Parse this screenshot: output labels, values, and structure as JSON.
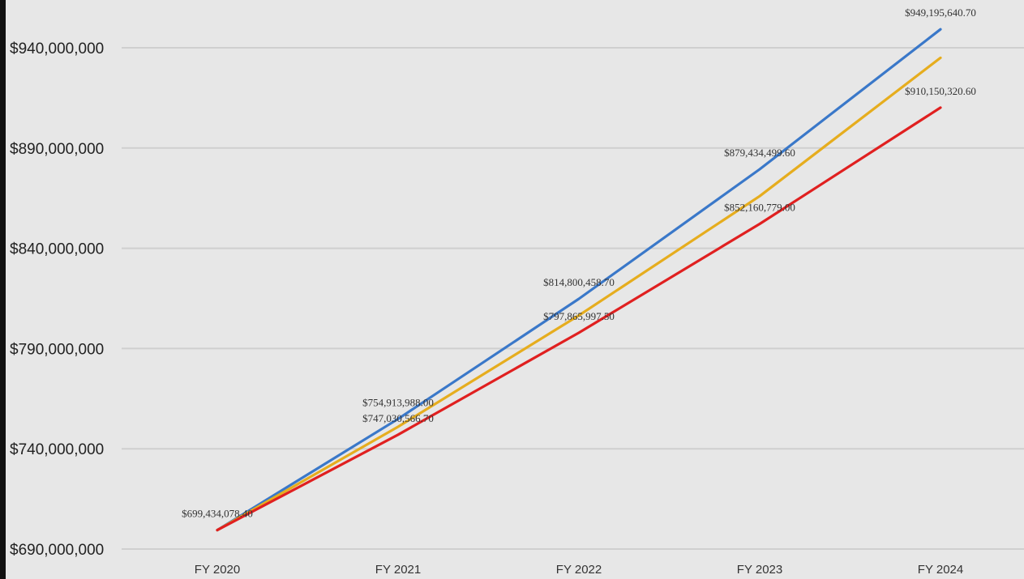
{
  "chart_data": {
    "type": "line",
    "title": "",
    "xlabel": "",
    "ylabel": "",
    "categories": [
      "FY 2020",
      "FY 2021",
      "FY 2022",
      "FY 2023",
      "FY 2024"
    ],
    "ylim": [
      690000000,
      940000000
    ],
    "y_ticks": [
      "$690,000,000",
      "$740,000,000",
      "$790,000,000",
      "$840,000,000",
      "$890,000,000",
      "$940,000,000"
    ],
    "grid": "horizontal",
    "legend": "none",
    "series": [
      {
        "color": "#3a78c9",
        "values": [
          699434078.4,
          754913988.0,
          814800458.7,
          879434499.6,
          949195640.7
        ]
      },
      {
        "color": "#e6ad1e",
        "values": [
          699434078.4,
          751000000,
          806500000,
          866000000,
          935000000
        ]
      },
      {
        "color": "#e02020",
        "values": [
          699434078.4,
          747030566.7,
          797865997.5,
          852160779.0,
          910150320.6
        ]
      }
    ],
    "data_labels": [
      {
        "text": "$699,434,078.40",
        "category": 0,
        "value": 699434078.4
      },
      {
        "text": "$754,913,988.00",
        "category": 1,
        "value": 754913988.0
      },
      {
        "text": "$747,030,566.70",
        "category": 1,
        "value": 747030566.7
      },
      {
        "text": "$814,800,458.70",
        "category": 2,
        "value": 814800458.7
      },
      {
        "text": "$797,865,997.50",
        "category": 2,
        "value": 797865997.5
      },
      {
        "text": "$879,434,499.60",
        "category": 3,
        "value": 879434499.6
      },
      {
        "text": "$852,160,779.00",
        "category": 3,
        "value": 852160779.0
      },
      {
        "text": "$949,195,640.70",
        "category": 4,
        "value": 949195640.7
      },
      {
        "text": "$910,150,320.60",
        "category": 4,
        "value": 910150320.6
      }
    ]
  }
}
